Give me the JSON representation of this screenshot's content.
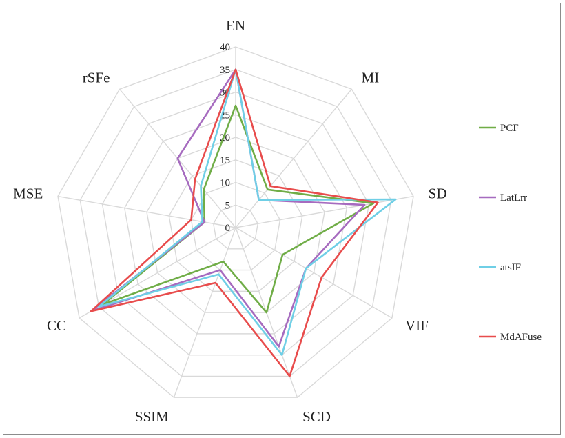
{
  "chart_data": {
    "type": "radar",
    "title": "",
    "axes": [
      "EN",
      "MI",
      "SD",
      "VIF",
      "SCD",
      "SSIM",
      "CC",
      "MSE",
      "rSFe"
    ],
    "rlim": [
      0,
      40
    ],
    "ticks": [
      0,
      5,
      10,
      15,
      20,
      25,
      30,
      35,
      40
    ],
    "grid": true,
    "legend_position": "right",
    "series": [
      {
        "name": "PCF",
        "color": "#70ad47",
        "values": [
          27,
          11,
          31,
          12,
          20,
          8,
          34,
          7,
          11
        ]
      },
      {
        "name": "LatLrr",
        "color": "#a66bbf",
        "values": [
          35,
          8,
          29,
          18,
          28,
          10,
          37,
          7,
          20
        ]
      },
      {
        "name": "atsIF",
        "color": "#6fcfe6",
        "values": [
          35,
          8,
          36,
          18,
          30,
          11,
          35,
          7.5,
          12
        ]
      },
      {
        "name": "MdAFuse",
        "color": "#e84c4c",
        "values": [
          35,
          12,
          32,
          22,
          35,
          13,
          37,
          10,
          14
        ]
      }
    ]
  }
}
